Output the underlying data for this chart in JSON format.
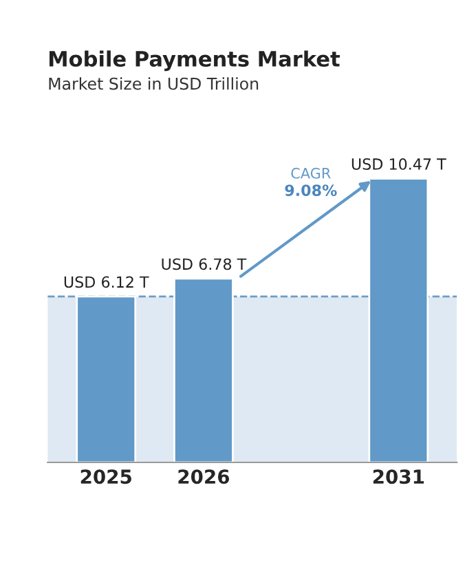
{
  "chart_data": {
    "type": "bar",
    "title": "Mobile Payments Market",
    "subtitle": "Market Size in USD Trillion",
    "categories": [
      "2025",
      "2026",
      null,
      "2031"
    ],
    "values": [
      6.12,
      6.78,
      null,
      10.47
    ],
    "value_labels": [
      "USD 6.12 T",
      "USD 6.78 T",
      null,
      "USD 10.47 T"
    ],
    "color": "#6199c8",
    "ref_lines": [
      {
        "axis": "y",
        "value": 6.12,
        "color": "#6f9cc4",
        "line_style": "dashed"
      }
    ],
    "bands": [
      {
        "axis": "y",
        "from": 0,
        "to": 6.12,
        "color": "#dfe9f3"
      }
    ],
    "annotations": [
      "CAGR",
      "9.08%"
    ],
    "tick_labels": "x",
    "grid": false,
    "legend": false
  }
}
